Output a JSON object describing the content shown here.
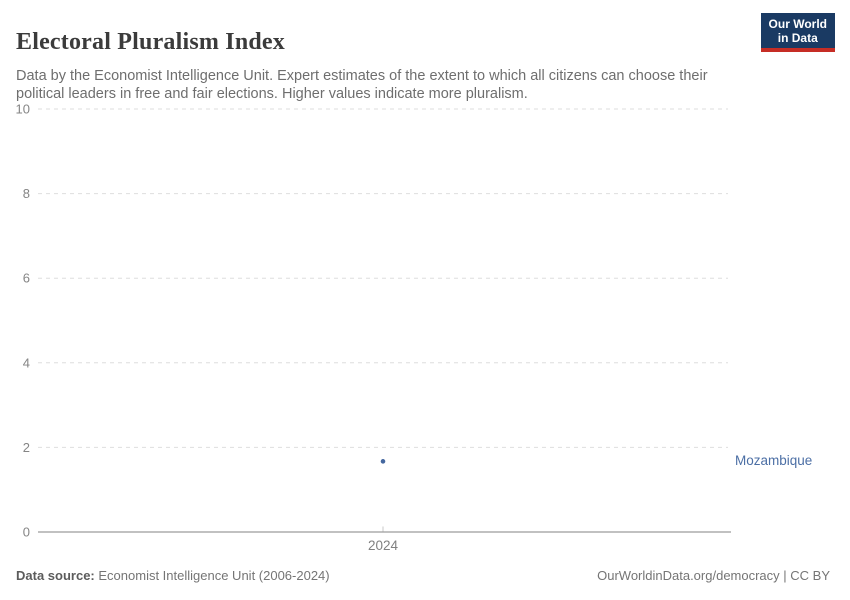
{
  "header": {
    "title": "Electoral Pluralism Index",
    "subtitle": "Data by the Economist Intelligence Unit. Expert estimates of the extent to which all citizens can choose their political leaders in free and fair elections. Higher values indicate more pluralism.",
    "logo": {
      "line1": "Our World",
      "line2": "in Data"
    }
  },
  "chart_data": {
    "type": "scatter",
    "title": "Electoral Pluralism Index",
    "x": [
      2024
    ],
    "series": [
      {
        "name": "Mozambique",
        "values": [
          1.67
        ],
        "color": "#44679f"
      }
    ],
    "xlabel": "",
    "ylabel": "",
    "ylim": [
      0,
      10
    ],
    "yticks": [
      0,
      2,
      4,
      6,
      8,
      10
    ],
    "xtick_labels": [
      "2024"
    ],
    "grid": "horizontal-dashed",
    "legend_position": "right-of-point",
    "entity_label": "Mozambique",
    "entity_label_color": "#4c6fa5"
  },
  "footer": {
    "source_label": "Data source:",
    "source_text": "Economist Intelligence Unit (2006-2024)",
    "link_text": "OurWorldinData.org/democracy | CC BY"
  },
  "colors": {
    "background": "#ffffff",
    "title_text": "#3b3b3b",
    "subtitle_text": "#6e6e6e",
    "gridline": "#dedede",
    "axis_line": "#9c9c9c",
    "tick_mark": "#c8c8c8",
    "tick_label": "#858585",
    "point": "#44679f",
    "logo_navy": "#1a3a63",
    "logo_red": "#c62d25"
  }
}
